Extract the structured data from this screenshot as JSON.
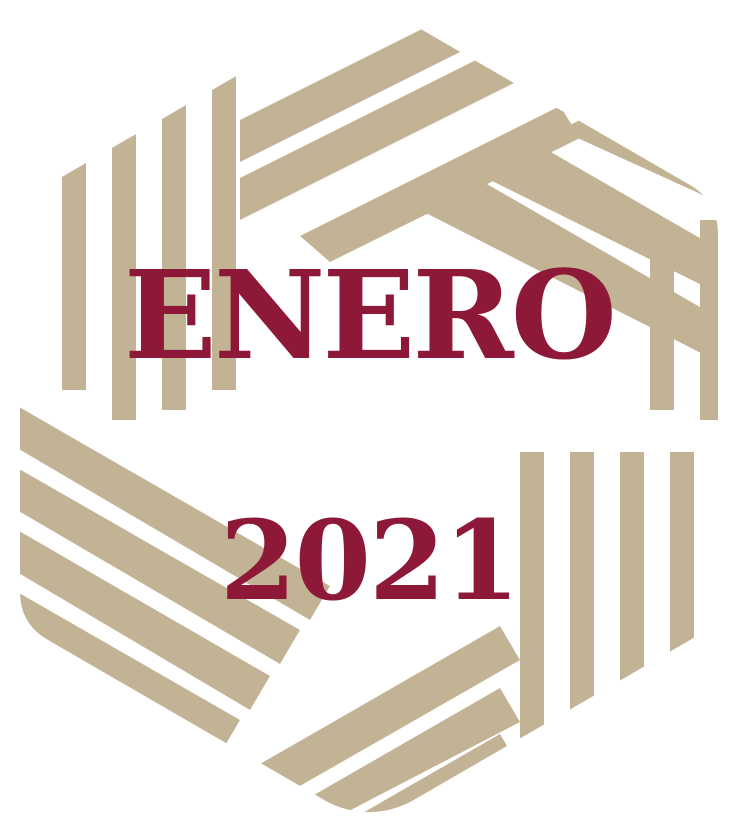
{
  "emblem": {
    "icon": "hexagonal-interwoven-stripes-emblem",
    "color": "#c3b395"
  },
  "month": "ENERO",
  "year": "2021",
  "text_color": "#8e1838",
  "background": "#ffffff"
}
